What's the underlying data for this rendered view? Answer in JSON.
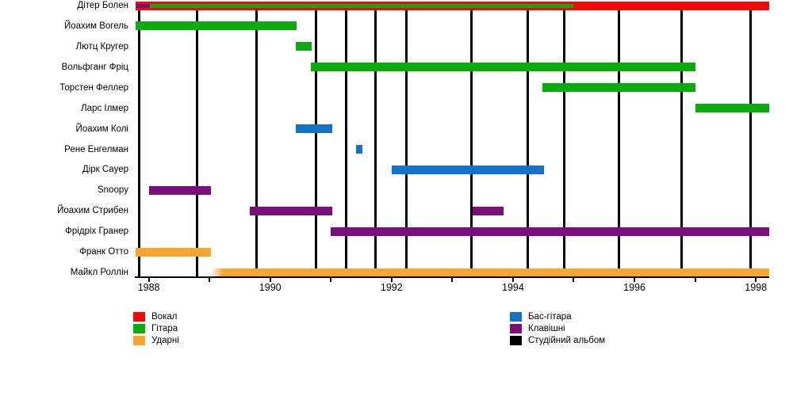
{
  "chart_data": {
    "type": "timeline",
    "title": "",
    "x_axis": {
      "start": 1987.77,
      "end": 1998.22,
      "tick_years": [
        1988,
        1989,
        1990,
        1991,
        1992,
        1993,
        1994,
        1995,
        1996,
        1997,
        1998
      ],
      "labeled_years": [
        1988,
        1990,
        1992,
        1994,
        1996,
        1998
      ],
      "grid": false
    },
    "roles": {
      "vocals": {
        "label": "Вокал",
        "color": "#f10808"
      },
      "guitar": {
        "label": "Гітара",
        "color": "#0cab0c"
      },
      "drums": {
        "label": "Ударні",
        "color": "#f9a62f"
      },
      "bass": {
        "label": "Бас-гітара",
        "color": "#1173c9"
      },
      "keyboards": {
        "label": "Клавішні",
        "color": "#7c0d7c"
      },
      "album": {
        "label": "Студійний альбом",
        "color": "#000000"
      }
    },
    "members": [
      {
        "name": "Дітер Болен",
        "bars": [
          {
            "role": "vocals",
            "start": 1987.78,
            "end": 1998.22
          },
          {
            "role": "guitar",
            "start": 1988.02,
            "end": 1995.0,
            "overlay": true
          },
          {
            "role": "keyboards",
            "start": 1987.78,
            "end": 1988.02,
            "overlay": true
          }
        ]
      },
      {
        "name": "Йоахим Вогель",
        "bars": [
          {
            "role": "guitar",
            "start": 1987.78,
            "end": 1990.43
          }
        ]
      },
      {
        "name": "Лютц Кругер",
        "bars": [
          {
            "role": "guitar",
            "start": 1990.42,
            "end": 1990.68
          }
        ]
      },
      {
        "name": "Вольфганг Фріц",
        "bars": [
          {
            "role": "guitar",
            "start": 1990.67,
            "end": 1997.0
          }
        ]
      },
      {
        "name": "Торстен Феллер",
        "bars": [
          {
            "role": "guitar",
            "start": 1994.48,
            "end": 1997.0
          }
        ]
      },
      {
        "name": "Ларс Ілмер",
        "bars": [
          {
            "role": "guitar",
            "start": 1997.0,
            "end": 1998.22
          }
        ]
      },
      {
        "name": "Йоахим Колі",
        "bars": [
          {
            "role": "bass",
            "start": 1990.42,
            "end": 1991.02
          }
        ]
      },
      {
        "name": "Рене Енгелман",
        "bars": [
          {
            "role": "bass",
            "start": 1991.41,
            "end": 1991.52
          }
        ]
      },
      {
        "name": "Дірк Сауер",
        "bars": [
          {
            "role": "bass",
            "start": 1992.0,
            "end": 1994.51
          }
        ]
      },
      {
        "name": "Snoopy",
        "bars": [
          {
            "role": "keyboards",
            "start": 1988.01,
            "end": 1989.02
          }
        ]
      },
      {
        "name": "Йоахим Стрибен",
        "bars": [
          {
            "role": "keyboards",
            "start": 1989.67,
            "end": 1991.02
          },
          {
            "role": "keyboards",
            "start": 1993.33,
            "end": 1993.84
          }
        ]
      },
      {
        "name": "Фрідріх Гранер",
        "bars": [
          {
            "role": "keyboards",
            "start": 1990.99,
            "end": 1998.22
          }
        ]
      },
      {
        "name": "Франк Отто",
        "bars": [
          {
            "role": "drums",
            "start": 1987.78,
            "end": 1989.02
          }
        ]
      },
      {
        "name": "Майкл Роллін",
        "bars": [
          {
            "role": "drums",
            "start": 1989.03,
            "end": 1998.22,
            "fade_in": true
          }
        ]
      }
    ],
    "album_release_years": [
      1987.84,
      1988.8,
      1989.78,
      1990.76,
      1991.25,
      1991.74,
      1992.25,
      1993.31,
      1994.24,
      1994.84,
      1995.75,
      1996.78,
      1997.91
    ],
    "legend": {
      "column1": [
        "vocals",
        "guitar",
        "drums"
      ],
      "column2": [
        "bass",
        "keyboards",
        "album"
      ]
    }
  }
}
